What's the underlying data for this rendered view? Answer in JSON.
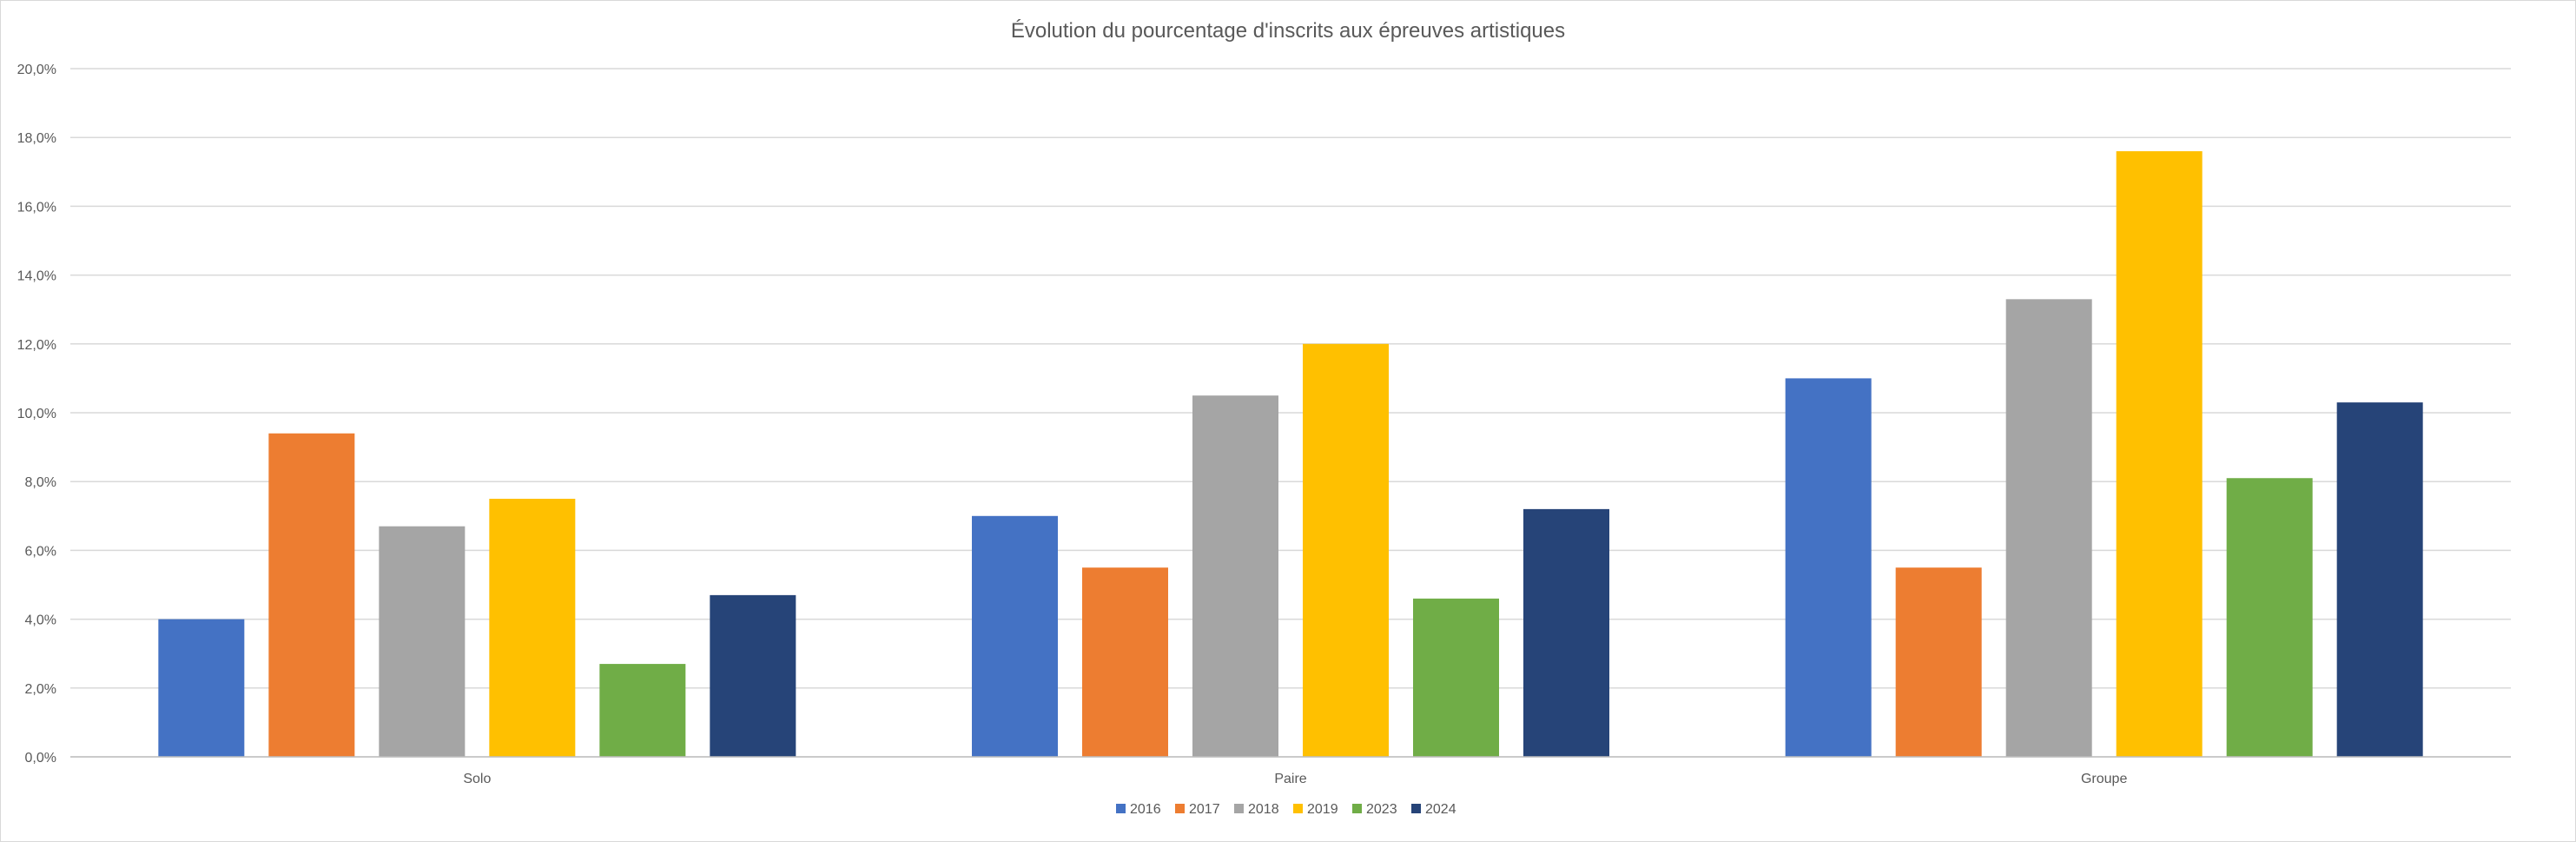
{
  "chart_data": {
    "type": "bar",
    "title": "Évolution du pourcentage d'inscrits aux épreuves artistiques",
    "categories": [
      "Solo",
      "Paire",
      "Groupe"
    ],
    "series": [
      {
        "name": "2016",
        "color": "#4472C4",
        "values": [
          4.0,
          7.0,
          11.0
        ]
      },
      {
        "name": "2017",
        "color": "#ED7D31",
        "values": [
          9.4,
          5.5,
          5.5
        ]
      },
      {
        "name": "2018",
        "color": "#A5A5A5",
        "values": [
          6.7,
          10.5,
          13.3
        ]
      },
      {
        "name": "2019",
        "color": "#FFC000",
        "values": [
          7.5,
          12.0,
          17.6
        ]
      },
      {
        "name": "2023",
        "color": "#70AD47",
        "values": [
          2.7,
          4.6,
          8.1
        ]
      },
      {
        "name": "2024",
        "color": "#264478",
        "values": [
          4.7,
          7.2,
          10.3
        ]
      }
    ],
    "ylim": [
      0,
      20
    ],
    "y_ticks": [
      "0,0%",
      "2,0%",
      "4,0%",
      "6,0%",
      "8,0%",
      "10,0%",
      "12,0%",
      "14,0%",
      "16,0%",
      "18,0%",
      "20,0%"
    ],
    "xlabel": "",
    "ylabel": "",
    "grid": true,
    "legend_position": "bottom"
  }
}
